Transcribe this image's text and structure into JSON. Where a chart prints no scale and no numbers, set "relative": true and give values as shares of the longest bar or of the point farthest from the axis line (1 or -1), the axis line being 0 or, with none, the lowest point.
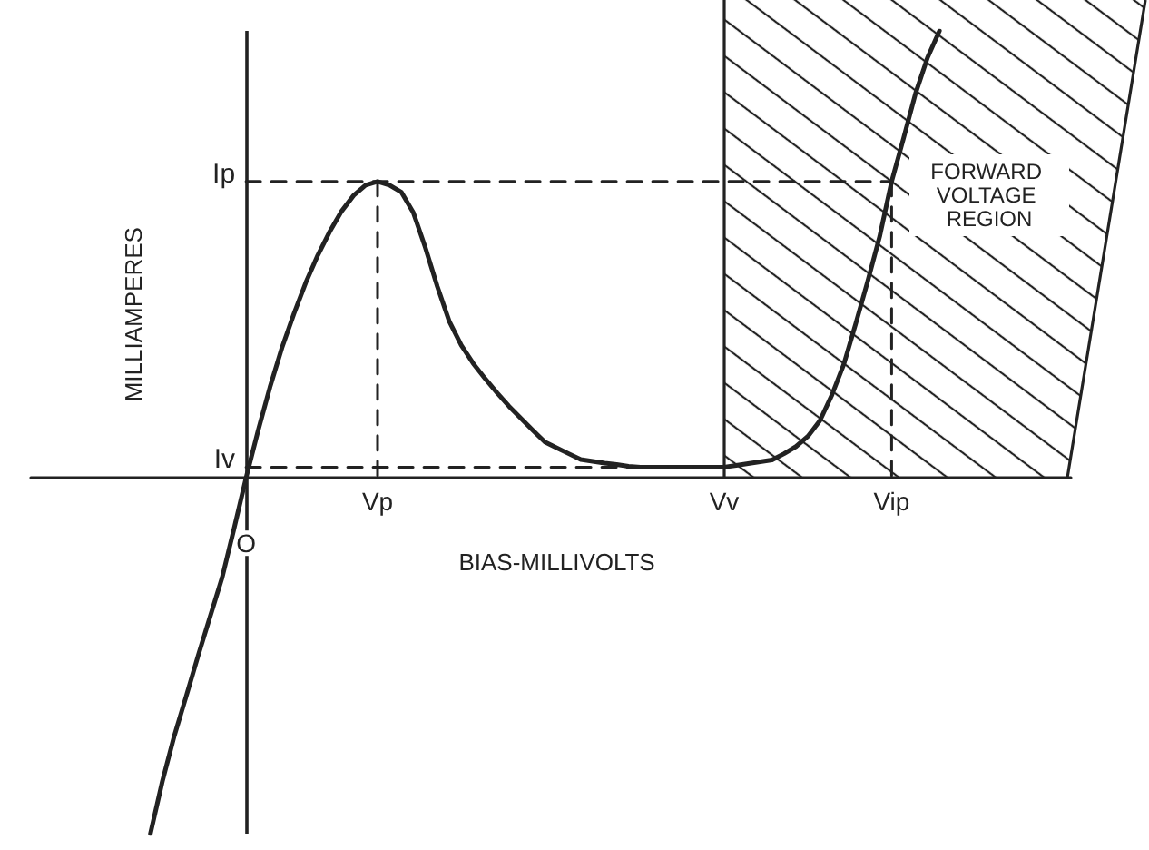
{
  "chart_data": {
    "type": "line",
    "relative": true,
    "xlabel": "BIAS-MILLIVOLTS",
    "ylabel": "MILLIAMPERES",
    "categories": [
      null,
      null,
      null,
      null,
      null,
      null,
      null,
      null,
      null,
      null,
      null,
      null,
      null,
      null,
      null,
      null,
      null,
      null,
      "O",
      null,
      null,
      null,
      null,
      null,
      null,
      null,
      null,
      null,
      null,
      "Vp",
      null,
      null,
      null,
      null,
      null,
      null,
      null,
      null,
      null,
      null,
      null,
      null,
      null,
      null,
      null,
      null,
      null,
      null,
      null,
      null,
      null,
      null,
      null,
      null,
      null,
      null,
      null,
      null,
      "Vv",
      null,
      null,
      null,
      null,
      null,
      null,
      null,
      null,
      null,
      null,
      null,
      null,
      null,
      "Vip",
      null,
      null,
      null,
      null,
      null,
      null,
      null,
      null,
      null,
      null,
      null,
      null,
      null,
      null,
      null
    ],
    "ref_lines": [
      {
        "axis": "x",
        "value": "O",
        "color": "#222222",
        "line_style": "solid"
      }
    ],
    "annotations": [
      "FORWARD VOLTAGE REGION"
    ],
    "marker": "none",
    "line_style": "solid",
    "series": [
      {
        "color": "#222222",
        "values": [
          null,
          null,
          null,
          null,
          null,
          null,
          null,
          null,
          null,
          null,
          -0.796,
          -0.679,
          -0.577,
          -0.488,
          -0.397,
          -0.31,
          -0.223,
          -0.113,
          0,
          0.105,
          0.203,
          0.291,
          0.367,
          0.437,
          0.498,
          0.551,
          0.597,
          0.632,
          0.655,
          0.663,
          0.655,
          0.639,
          0.593,
          0.515,
          0.428,
          0.35,
          0.297,
          0.256,
          0.222,
          0.19,
          0.16,
          0.133,
          0.106,
          0.08,
          0.067,
          0.054,
          0.041,
          0.037,
          0.033,
          0.03,
          0.026,
          0.024,
          0.024,
          0.024,
          0.024,
          0.024,
          0.024,
          0.024,
          0.024,
          0.028,
          0.032,
          0.036,
          0.04,
          0.054,
          0.07,
          0.093,
          0.128,
          0.185,
          0.254,
          0.345,
          0.44,
          0.54,
          0.663,
          0.76,
          0.86,
          0.94,
          1,
          null,
          null,
          null,
          null,
          null,
          null,
          null,
          null,
          null,
          null,
          null
        ]
      },
      {
        "name": "Ip",
        "color": "#222222",
        "line_style": "dashed",
        "x": [
          "O",
          "Vip"
        ],
        "values": [
          0.663,
          0.663
        ]
      },
      {
        "color": "#222222",
        "line_style": "dashed",
        "x": [
          "Vp",
          "Vp"
        ],
        "values": [
          0.663,
          0
        ]
      },
      {
        "name": "Iv",
        "color": "#222222",
        "line_style": "dashed",
        "x": [
          "O",
          "Vv"
        ],
        "values": [
          0.024,
          0.024
        ]
      },
      {
        "color": "#222222",
        "line_style": "dashed",
        "x": [
          "Vip",
          "Vip"
        ],
        "values": [
          0.663,
          0
        ]
      }
    ]
  }
}
